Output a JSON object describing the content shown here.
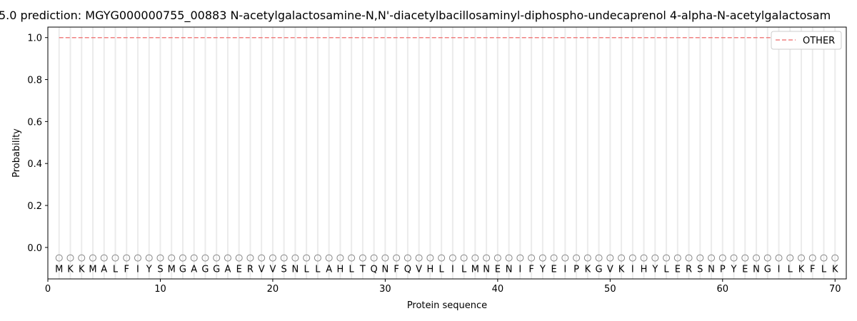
{
  "chart_data": {
    "type": "line",
    "title": "5.0 prediction: MGYG000000755_00883 N-acetylgalactosamine-N,N'-diacetylbacillosaminyl-diphospho-undecaprenol 4-alpha-N-acetylgalactosam",
    "xlabel": "Protein sequence",
    "ylabel": "Probability",
    "xlim": [
      0,
      71
    ],
    "ylim": [
      -0.15,
      1.05
    ],
    "xticks": [
      0,
      10,
      20,
      30,
      40,
      50,
      60,
      70
    ],
    "yticks": [
      0.0,
      0.2,
      0.4,
      0.6,
      0.8,
      1.0
    ],
    "ytick_labels": [
      "0.0",
      "0.2",
      "0.4",
      "0.6",
      "0.8",
      "1.0"
    ],
    "grid": "vertical lines at each residue",
    "legend_position": "top-right",
    "series": [
      {
        "name": "OTHER",
        "color": "#f08080",
        "style": "dashed",
        "x_start": 1,
        "x_end": 70,
        "value": 1.0
      }
    ],
    "sequence": "MKKMALFIYSMGAGGAERVVSNLLAHLTQNFQVHLILMNENIFYEIPKGVKIHYLERSNPYENGILKFLK",
    "marker_y": -0.05,
    "marker_symbol": "O"
  }
}
